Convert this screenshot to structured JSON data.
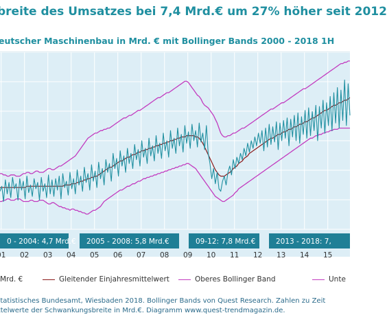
{
  "title": "breite des Umsatzes bei 7,4 Mrd.€ um 27% höher seit 2012",
  "subtitle": "eutscher Maschinenbau in Mrd. € mit Bollinger Bands 2000 - 2018 1H",
  "periods": [
    {
      "label": "0 - 2004: 4,7 Mrd.€"
    },
    {
      "label": "2005 - 2008: 5,8 Mrd.€"
    },
    {
      "label": "09-12: 7,8 Mrd.€"
    },
    {
      "label": "2013 - 2018: 7,"
    }
  ],
  "legend": {
    "actual": "Mrd. €",
    "ma": "Gleitender Einjahresmittelwert",
    "upper": "Oberes Bollinger Band",
    "lower": "Unte"
  },
  "source": {
    "line1": "Statistisches Bundesamt, Wiesbaden 2018. Bollinger Bands von Quest Research. Zahlen zu Zeit",
    "line2": "ittelwerte der Schwankungsbreite in Mrd.€. Diagramm www.quest-trendmagazin.de."
  },
  "colors": {
    "actual": "#1f8fa0",
    "ma": "#8b1a1a",
    "bands": "#c23bbf",
    "period_bar": "#1f7f96",
    "background": "#ddeef6",
    "grid": "#ffffff"
  },
  "chart_data": {
    "type": "line",
    "x_ticks": [
      "01",
      "02",
      "03",
      "04",
      "05",
      "06",
      "07",
      "08",
      "09",
      "10",
      "11",
      "12",
      "13",
      "14",
      "15"
    ],
    "series": [
      {
        "name": "Mrd. €",
        "y": [
          40,
          44,
          32,
          49,
          38,
          47,
          35,
          51,
          42,
          46,
          33,
          50,
          41,
          48,
          34,
          52,
          39,
          45,
          36,
          50,
          42,
          47,
          33,
          51,
          40,
          46,
          35,
          53,
          38,
          49,
          36,
          50,
          41,
          52,
          34,
          54,
          43,
          48,
          37,
          55,
          42,
          50,
          38,
          57,
          45,
          52,
          40,
          59,
          47,
          54,
          41,
          61,
          48,
          56,
          43,
          63,
          50,
          58,
          45,
          65,
          55,
          62,
          48,
          70,
          58,
          66,
          52,
          72,
          60,
          68,
          55,
          74,
          62,
          70,
          58,
          77,
          65,
          73,
          60,
          80,
          67,
          74,
          62,
          82,
          68,
          76,
          64,
          84,
          70,
          78,
          66,
          86,
          72,
          80,
          67,
          88,
          74,
          82,
          70,
          90,
          76,
          85,
          71,
          92,
          78,
          87,
          74,
          93,
          80,
          88,
          75,
          94,
          79,
          86,
          73,
          92,
          70,
          62,
          50,
          58,
          46,
          55,
          42,
          40,
          48,
          52,
          45,
          55,
          60,
          53,
          65,
          58,
          67,
          62,
          70,
          65,
          74,
          68,
          78,
          71,
          80,
          74,
          83,
          76,
          86,
          78,
          88,
          72,
          90,
          75,
          93,
          77,
          91,
          79,
          95,
          73,
          94,
          80,
          96,
          82,
          98,
          76,
          97,
          83,
          100,
          80,
          102,
          78,
          99,
          85,
          104,
          82,
          106,
          84,
          103,
          88,
          108,
          80,
          107,
          90,
          112,
          86,
          110,
          92,
          115,
          88,
          118,
          94,
          122,
          90,
          120,
          96,
          128,
          92,
          125,
          100
        ]
      },
      {
        "name": "Gleitender Einjahresmittelwert",
        "y": [
          43,
          43,
          43,
          43,
          43,
          43,
          43,
          43,
          43,
          43,
          43,
          43,
          43,
          43,
          43,
          44,
          44,
          44,
          44,
          44,
          44,
          44,
          44,
          44,
          44,
          44,
          44,
          44,
          44,
          44,
          44,
          44,
          44,
          44,
          44,
          44,
          45,
          45,
          45,
          45,
          46,
          46,
          46,
          47,
          47,
          48,
          48,
          49,
          49,
          50,
          50,
          51,
          51,
          52,
          52,
          53,
          54,
          55,
          56,
          57,
          58,
          59,
          59,
          60,
          61,
          62,
          63,
          64,
          64,
          65,
          66,
          67,
          67,
          68,
          69,
          69,
          70,
          71,
          71,
          72,
          72,
          73,
          73,
          74,
          74,
          75,
          75,
          76,
          76,
          77,
          77,
          78,
          78,
          79,
          79,
          80,
          80,
          81,
          81,
          82,
          82,
          83,
          83,
          83,
          84,
          84,
          84,
          84,
          84,
          83,
          83,
          82,
          80,
          78,
          75,
          72,
          69,
          66,
          63,
          60,
          57,
          55,
          53,
          52,
          52,
          52,
          53,
          54,
          55,
          56,
          58,
          59,
          60,
          62,
          63,
          64,
          66,
          67,
          68,
          70,
          71,
          72,
          73,
          74,
          75,
          76,
          77,
          78,
          79,
          80,
          81,
          82,
          82,
          83,
          84,
          85,
          85,
          86,
          87,
          87,
          88,
          89,
          89,
          90,
          91,
          91,
          92,
          93,
          93,
          94,
          95,
          95,
          96,
          97,
          98,
          98,
          99,
          100,
          101,
          102,
          103,
          104,
          104,
          105,
          106,
          107,
          108,
          108,
          109,
          110,
          110,
          111,
          112,
          112,
          113,
          114
        ]
      },
      {
        "name": "Oberes Bollinger Band",
        "y": [
          54,
          54,
          53,
          53,
          52,
          52,
          53,
          53,
          53,
          52,
          52,
          52,
          53,
          54,
          54,
          55,
          55,
          54,
          54,
          55,
          56,
          56,
          55,
          55,
          55,
          56,
          57,
          58,
          58,
          57,
          57,
          58,
          59,
          60,
          60,
          61,
          62,
          63,
          64,
          65,
          66,
          67,
          68,
          70,
          72,
          74,
          76,
          78,
          80,
          82,
          83,
          84,
          85,
          86,
          86,
          87,
          88,
          88,
          89,
          89,
          90,
          90,
          91,
          92,
          93,
          94,
          95,
          96,
          97,
          98,
          98,
          99,
          100,
          100,
          101,
          102,
          103,
          104,
          104,
          105,
          106,
          107,
          108,
          109,
          110,
          111,
          112,
          113,
          114,
          114,
          115,
          116,
          117,
          118,
          118,
          119,
          120,
          121,
          122,
          123,
          124,
          125,
          126,
          127,
          127,
          126,
          124,
          122,
          120,
          118,
          116,
          115,
          113,
          110,
          108,
          107,
          106,
          104,
          102,
          100,
          97,
          94,
          90,
          86,
          84,
          83,
          83,
          84,
          84,
          85,
          86,
          86,
          87,
          88,
          89,
          90,
          90,
          91,
          92,
          93,
          94,
          95,
          96,
          97,
          98,
          99,
          100,
          101,
          102,
          103,
          104,
          105,
          105,
          106,
          107,
          108,
          109,
          110,
          110,
          111,
          112,
          113,
          114,
          115,
          116,
          117,
          118,
          119,
          120,
          121,
          121,
          122,
          123,
          124,
          125,
          126,
          127,
          128,
          129,
          130,
          131,
          132,
          133,
          134,
          135,
          136,
          137,
          138,
          139,
          140,
          141,
          141,
          142,
          142,
          143,
          143
        ]
      },
      {
        "name": "Unte",
        "y": [
          32,
          32,
          33,
          33,
          34,
          34,
          33,
          33,
          33,
          34,
          34,
          34,
          33,
          32,
          32,
          32,
          32,
          33,
          33,
          32,
          32,
          32,
          33,
          33,
          33,
          32,
          31,
          30,
          30,
          31,
          31,
          30,
          29,
          28,
          28,
          27,
          27,
          26,
          26,
          25,
          26,
          26,
          25,
          25,
          24,
          24,
          23,
          23,
          22,
          22,
          23,
          24,
          25,
          25,
          26,
          27,
          28,
          30,
          32,
          33,
          34,
          35,
          36,
          37,
          38,
          39,
          40,
          41,
          41,
          42,
          43,
          44,
          44,
          45,
          46,
          46,
          47,
          48,
          48,
          49,
          50,
          50,
          51,
          51,
          52,
          52,
          53,
          53,
          54,
          54,
          55,
          55,
          56,
          56,
          57,
          57,
          58,
          58,
          59,
          59,
          60,
          60,
          61,
          61,
          62,
          62,
          61,
          60,
          59,
          58,
          56,
          54,
          52,
          50,
          48,
          46,
          44,
          42,
          40,
          38,
          36,
          35,
          34,
          33,
          32,
          32,
          33,
          34,
          35,
          36,
          37,
          39,
          40,
          42,
          43,
          44,
          45,
          46,
          47,
          48,
          49,
          50,
          51,
          52,
          53,
          54,
          55,
          56,
          57,
          58,
          59,
          60,
          61,
          62,
          63,
          64,
          65,
          66,
          67,
          68,
          69,
          70,
          71,
          72,
          73,
          74,
          75,
          76,
          77,
          78,
          79,
          80,
          81,
          82,
          82,
          83,
          84,
          84,
          85,
          85,
          86,
          86,
          87,
          87,
          88,
          88,
          89,
          89,
          89,
          90,
          90,
          90,
          90,
          90,
          90,
          90
        ]
      }
    ]
  }
}
